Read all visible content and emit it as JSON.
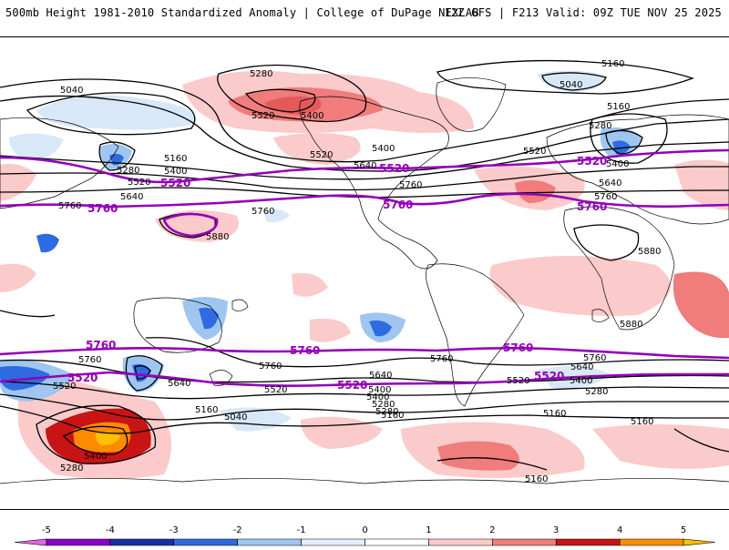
{
  "header": {
    "title": "500mb Height 1981-2010 Standardized Anomaly | College of DuPage NEXLAB",
    "run_info": "12Z GFS | F213 Valid: 09Z TUE NOV 25 2025"
  },
  "colors": {
    "contour": "#000000",
    "highlight_contour": "#9400b8",
    "coast": "#000000"
  },
  "colorbar": {
    "ticks": [
      "-5",
      "-4",
      "-3",
      "-2",
      "-1",
      "0",
      "1",
      "2",
      "3",
      "4",
      "5"
    ],
    "bins": [
      {
        "from": -5.5,
        "to": -5,
        "color": "#e066e0"
      },
      {
        "from": -5,
        "to": -4,
        "color": "#8a00c8"
      },
      {
        "from": -4,
        "to": -3,
        "color": "#1a2ea8"
      },
      {
        "from": -3,
        "to": -2,
        "color": "#2f6be0"
      },
      {
        "from": -2,
        "to": -1,
        "color": "#9ec6f0"
      },
      {
        "from": -1,
        "to": 0,
        "color": "#e2eefb"
      },
      {
        "from": 0,
        "to": 1,
        "color": "#ffffff"
      },
      {
        "from": 1,
        "to": 2,
        "color": "#fbcaca"
      },
      {
        "from": 2,
        "to": 3,
        "color": "#f07c7c"
      },
      {
        "from": 3,
        "to": 4,
        "color": "#c81414"
      },
      {
        "from": 4,
        "to": 5,
        "color": "#ff8c00"
      },
      {
        "from": 5,
        "to": 5.5,
        "color": "#ffc000"
      }
    ]
  },
  "contour_labels": {
    "nh_5040": "5040",
    "nh_5280_a": "5280",
    "nh_5280_b": "5280",
    "nh_5520_a": "5520",
    "nh_5400_a": "5400",
    "nh_5520_b": "5520",
    "nh_5400_b": "5400",
    "nh_5160_top": "5160",
    "nh_5040_right": "5040",
    "nh_5160_right": "5160",
    "nh_5280_right": "5280",
    "nh_5520_right": "5520",
    "nh_5400_right": "5400",
    "nh_5640_right": "5640",
    "nh_5760_right": "5760",
    "nh_5160_left": "5160",
    "nh_5280_left": "5280",
    "nh_5400_left": "5400",
    "nh_5520_left": "5520",
    "nh_5640_left": "5640",
    "nh_5760_left": "5760",
    "nh_5760_mid": "5760",
    "nh_5880": "5880",
    "nh_5880_right": "5880",
    "nh_5880_sh": "5880",
    "nh_5760_us": "5760",
    "nh_5640_us": "5640",
    "bold_5520_w": "5520",
    "bold_5760_w": "5760",
    "bold_5520_c": "5520",
    "bold_5760_c": "5760",
    "bold_5520_e": "5520",
    "bold_5760_e": "5760",
    "sh_bold_5760_w": "5760",
    "sh_bold_5760_c": "5760",
    "sh_bold_5760_e": "5760",
    "sh_bold_5520_w": "5520",
    "sh_bold_5520_c": "5520",
    "sh_bold_5520_e": "5520",
    "sh_5760_a": "5760",
    "sh_5760_b": "5760",
    "sh_5760_c": "5760",
    "sh_5760_d": "5760",
    "sh_5640_a": "5640",
    "sh_5640_b": "5640",
    "sh_5640_c": "5640",
    "sh_5520_a": "5520",
    "sh_5520_b": "5520",
    "sh_5520_c": "5520",
    "sh_5400_a": "5400",
    "sh_5400_b": "5400",
    "sh_5400_c": "5400",
    "sh_5280_a": "5280",
    "sh_5280_b": "5280",
    "sh_5280_c": "5280",
    "sh_5160_a": "5160",
    "sh_5160_b": "5160",
    "sh_5160_c": "5160",
    "sh_5160_d": "5160",
    "sh_5040": "5040",
    "sh_5400_low": "5400",
    "sh_5280_low": "5280",
    "sh_5160_bottom": "5160"
  }
}
